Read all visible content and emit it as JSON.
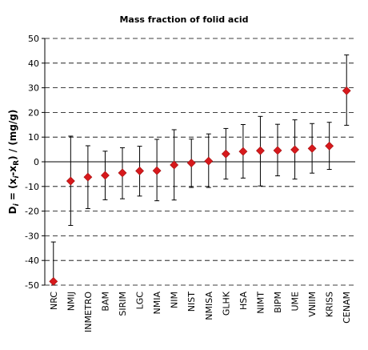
{
  "chart_data": {
    "type": "scatter",
    "title": "Mass fraction of folid acid",
    "ylabel": "D_i = (x_i-x_R) / (mg/g)",
    "ylabel_parts": {
      "prefix": "D",
      "prefix_sub": "i",
      "mid1": " = (x",
      "sub1": "i",
      "mid2": "-x",
      "sub2": "R",
      "suffix": ") / (mg/g)"
    },
    "ylim": [
      -50,
      50
    ],
    "yticks": [
      -50,
      -40,
      -30,
      -20,
      -10,
      0,
      10,
      20,
      30,
      40,
      50
    ],
    "grid": true,
    "categories": [
      "NRC",
      "NMIJ",
      "INMETRO",
      "BAM",
      "SIRIM",
      "LGC",
      "NMIA",
      "NIM",
      "NIST",
      "NMISA",
      "GLHK",
      "HSA",
      "NIMT",
      "BIPM",
      "UME",
      "VNIIM",
      "KRISS",
      "CENAM"
    ],
    "values": [
      -48.5,
      -7.8,
      -6.2,
      -5.5,
      -4.5,
      -3.7,
      -3.6,
      -1.3,
      -0.5,
      0.3,
      3.2,
      4.2,
      4.5,
      4.6,
      4.9,
      5.4,
      6.4,
      28.8
    ],
    "err_upper": [
      -32.5,
      10.4,
      6.5,
      4.3,
      5.7,
      6.3,
      9.1,
      13.0,
      9.2,
      11.3,
      13.5,
      15.1,
      18.4,
      15.2,
      17.0,
      15.5,
      16.0,
      43.3
    ],
    "err_lower": [
      -50.0,
      -25.8,
      -19.0,
      -15.4,
      -15.0,
      -13.9,
      -15.8,
      -15.5,
      -10.4,
      -10.4,
      -7.0,
      -6.6,
      -9.8,
      -5.7,
      -7.0,
      -4.6,
      -3.1,
      14.8
    ],
    "colors": {
      "marker": "#d7191c"
    }
  }
}
